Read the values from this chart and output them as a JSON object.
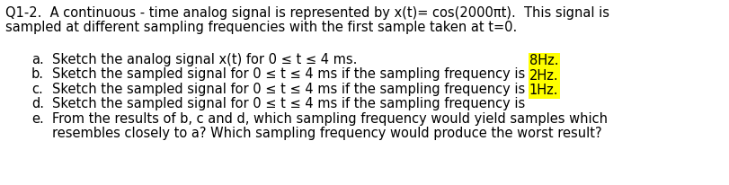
{
  "background_color": "#ffffff",
  "title_line1": "Q1-2.  A continuous - time analog signal is represented by x(t)= cos(2000πt).  This signal is",
  "title_line2": "sampled at different sampling frequencies with the first sample taken at t=0.",
  "items": [
    {
      "label": "a.",
      "text_before": "Sketch the analog signal x(t) for 0 ≤ t ≤ 4 ms.",
      "highlight": null,
      "text_after": null
    },
    {
      "label": "b.",
      "text_before": "Sketch the sampled signal for 0 ≤ t ≤ 4 ms if the sampling frequency is ",
      "highlight": "8Hz.",
      "text_after": null
    },
    {
      "label": "c.",
      "text_before": "Sketch the sampled signal for 0 ≤ t ≤ 4 ms if the sampling frequency is ",
      "highlight": "2Hz.",
      "text_after": null
    },
    {
      "label": "d.",
      "text_before": "Sketch the sampled signal for 0 ≤ t ≤ 4 ms if the sampling frequency is ",
      "highlight": "1Hz.",
      "text_after": null
    },
    {
      "label": "e.",
      "text_before": "From the results of b, c and d, which sampling frequency would yield samples which",
      "highlight": null,
      "text_after": "resembles closely to a? Which sampling frequency would produce the worst result?"
    }
  ],
  "highlight_color": "#ffff00",
  "font_size": 10.5,
  "text_color": "#000000",
  "fig_width": 8.12,
  "fig_height": 2.06,
  "dpi": 100
}
